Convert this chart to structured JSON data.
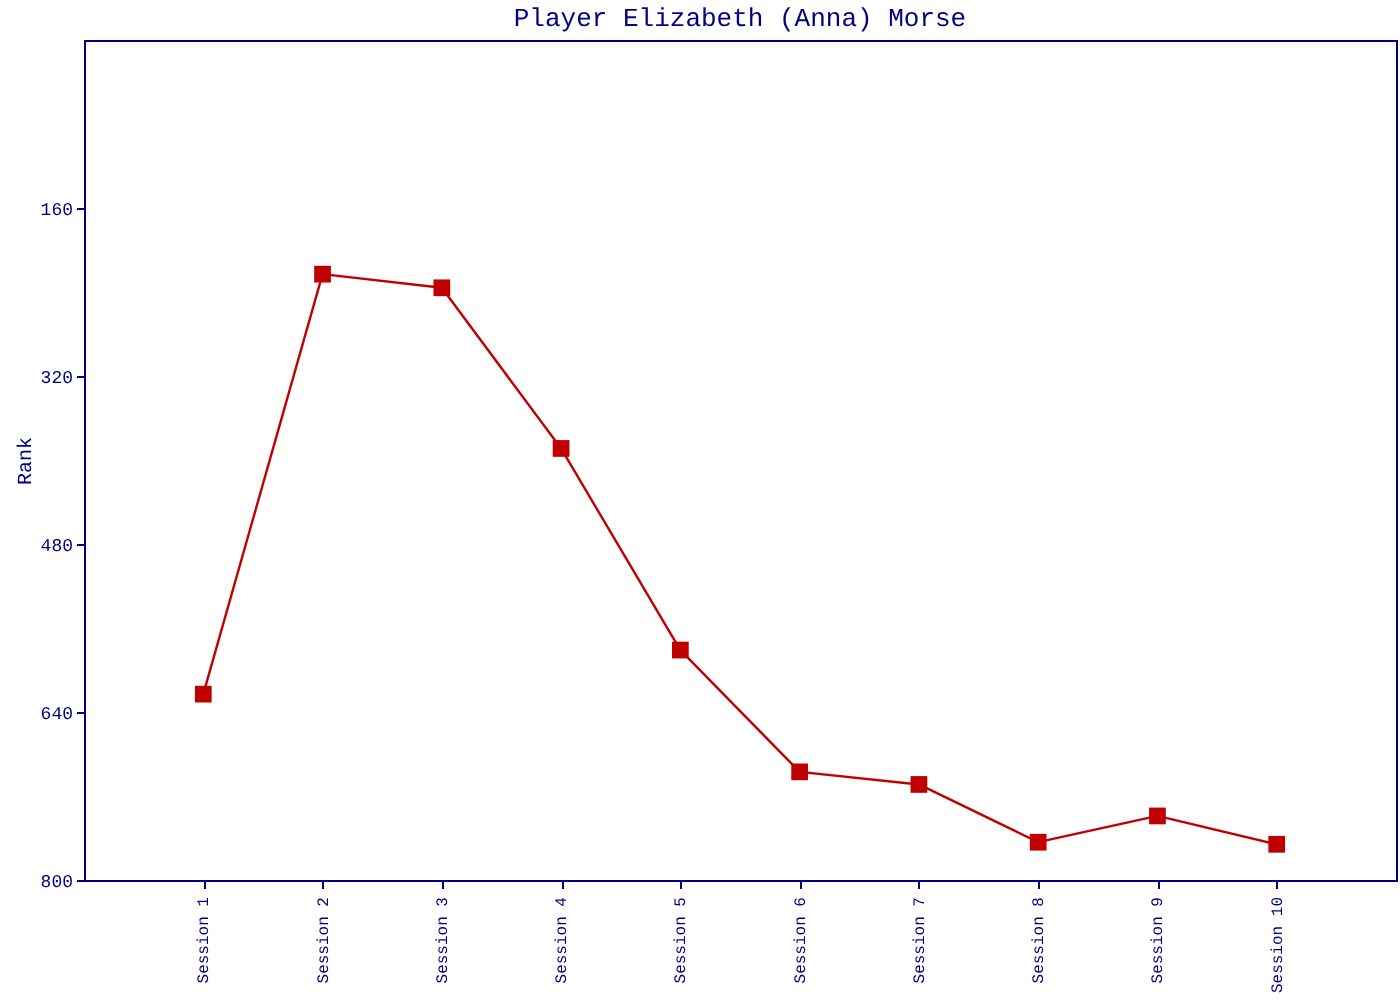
{
  "chart_data": {
    "type": "line",
    "title": "Player Elizabeth (Anna) Morse",
    "ylabel": "Rank",
    "categories": [
      "Session 1",
      "Session 2",
      "Session 3",
      "Session 4",
      "Session 5",
      "Session 6",
      "Session 7",
      "Session 8",
      "Session 9",
      "Session 10"
    ],
    "series": [
      {
        "color": "#c00000",
        "values": [
          623,
          223,
          236,
          389,
          581,
          697,
          709,
          764,
          739,
          766
        ]
      }
    ],
    "ylim": [
      800,
      0
    ],
    "yticks": [
      160,
      320,
      480,
      640,
      800
    ],
    "grid": false,
    "legend": false,
    "marker": "square",
    "line_style": "solid"
  }
}
